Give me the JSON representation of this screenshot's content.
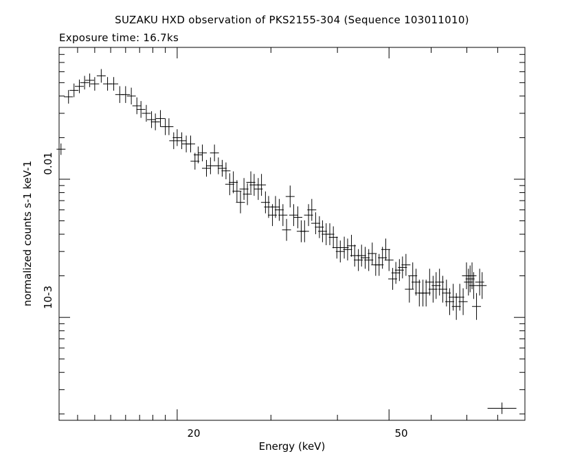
{
  "chart_data": {
    "type": "scatter",
    "title": "SUZAKU HXD observation of PKS2155-304 (Sequence 103011010)",
    "subtitle": "Exposure time: 16.7ks",
    "xlabel": "Energy (keV)",
    "ylabel": "normalized counts s-1 keV-1",
    "x_scale": "log",
    "y_scale": "log",
    "xlim": [
      12.0,
      90.0
    ],
    "ylim": [
      0.00018,
      0.09
    ],
    "x_tick_labels": [
      "20",
      "50"
    ],
    "y_tick_labels": [
      "0.01",
      "10-3"
    ],
    "error_bars": true,
    "grid": false,
    "points": [
      [
        12.1,
        0.0165,
        0.1
      ],
      [
        12.5,
        0.0395,
        0.12
      ],
      [
        12.8,
        0.044,
        0.12
      ],
      [
        13.1,
        0.047,
        0.12
      ],
      [
        13.4,
        0.05,
        0.12
      ],
      [
        13.7,
        0.052,
        0.12
      ],
      [
        14.0,
        0.049,
        0.12
      ],
      [
        14.4,
        0.056,
        0.12
      ],
      [
        14.8,
        0.049,
        0.12
      ],
      [
        15.2,
        0.049,
        0.12
      ],
      [
        15.6,
        0.041,
        0.15
      ],
      [
        16.0,
        0.041,
        0.15
      ],
      [
        16.4,
        0.04,
        0.15
      ],
      [
        16.8,
        0.034,
        0.15
      ],
      [
        17.1,
        0.032,
        0.15
      ],
      [
        17.5,
        0.03,
        0.15
      ],
      [
        17.9,
        0.027,
        0.15
      ],
      [
        18.2,
        0.026,
        0.15
      ],
      [
        18.6,
        0.0275,
        0.15
      ],
      [
        19.0,
        0.024,
        0.15
      ],
      [
        19.3,
        0.024,
        0.15
      ],
      [
        19.7,
        0.019,
        0.15
      ],
      [
        20.0,
        0.02,
        0.15
      ],
      [
        20.4,
        0.019,
        0.15
      ],
      [
        20.8,
        0.018,
        0.15
      ],
      [
        21.2,
        0.018,
        0.15
      ],
      [
        21.6,
        0.0135,
        0.15
      ],
      [
        21.9,
        0.015,
        0.15
      ],
      [
        22.3,
        0.0155,
        0.15
      ],
      [
        22.7,
        0.012,
        0.15
      ],
      [
        23.1,
        0.0125,
        0.15
      ],
      [
        23.5,
        0.0155,
        0.15
      ],
      [
        23.9,
        0.0125,
        0.15
      ],
      [
        24.3,
        0.012,
        0.15
      ],
      [
        24.7,
        0.0115,
        0.15
      ],
      [
        25.1,
        0.0092,
        0.2
      ],
      [
        25.5,
        0.0095,
        0.2
      ],
      [
        25.9,
        0.0082,
        0.2
      ],
      [
        26.3,
        0.0068,
        0.2
      ],
      [
        26.7,
        0.0085,
        0.2
      ],
      [
        27.1,
        0.0078,
        0.2
      ],
      [
        27.5,
        0.0095,
        0.2
      ],
      [
        27.9,
        0.0091,
        0.2
      ],
      [
        28.4,
        0.0085,
        0.2
      ],
      [
        28.8,
        0.0091,
        0.2
      ],
      [
        29.3,
        0.0068,
        0.2
      ],
      [
        29.7,
        0.0063,
        0.2
      ],
      [
        30.2,
        0.0055,
        0.2
      ],
      [
        30.6,
        0.0063,
        0.2
      ],
      [
        31.1,
        0.006,
        0.2
      ],
      [
        31.6,
        0.0055,
        0.2
      ],
      [
        32.1,
        0.0043,
        0.2
      ],
      [
        32.6,
        0.0075,
        0.2
      ],
      [
        33.1,
        0.0055,
        0.2
      ],
      [
        33.7,
        0.0053,
        0.2
      ],
      [
        34.2,
        0.0042,
        0.2
      ],
      [
        34.7,
        0.0042,
        0.2
      ],
      [
        35.3,
        0.0055,
        0.2
      ],
      [
        35.8,
        0.006,
        0.2
      ],
      [
        36.4,
        0.0048,
        0.2
      ],
      [
        37.0,
        0.0045,
        0.2
      ],
      [
        37.5,
        0.0042,
        0.2
      ],
      [
        38.1,
        0.004,
        0.2
      ],
      [
        38.7,
        0.004,
        0.2
      ],
      [
        39.3,
        0.0038,
        0.2
      ],
      [
        39.9,
        0.0032,
        0.2
      ],
      [
        40.5,
        0.003,
        0.2
      ],
      [
        41.2,
        0.0032,
        0.2
      ],
      [
        41.8,
        0.0031,
        0.2
      ],
      [
        42.5,
        0.0033,
        0.2
      ],
      [
        43.1,
        0.0028,
        0.2
      ],
      [
        43.8,
        0.0026,
        0.2
      ],
      [
        44.4,
        0.0028,
        0.2
      ],
      [
        45.1,
        0.0027,
        0.2
      ],
      [
        45.8,
        0.0026,
        0.2
      ],
      [
        46.5,
        0.0029,
        0.2
      ],
      [
        47.2,
        0.0024,
        0.2
      ],
      [
        47.9,
        0.0024,
        0.2
      ],
      [
        48.6,
        0.0027,
        0.2
      ],
      [
        49.3,
        0.0031,
        0.2
      ],
      [
        50.0,
        0.0026,
        0.2
      ],
      [
        50.8,
        0.0019,
        0.2
      ],
      [
        51.5,
        0.0021,
        0.2
      ],
      [
        52.3,
        0.0022,
        0.2
      ],
      [
        53.0,
        0.0023,
        0.2
      ],
      [
        53.8,
        0.0024,
        0.2
      ],
      [
        54.6,
        0.0016,
        0.25
      ],
      [
        55.4,
        0.002,
        0.25
      ],
      [
        56.2,
        0.0018,
        0.25
      ],
      [
        57.0,
        0.0015,
        0.25
      ],
      [
        57.9,
        0.0015,
        0.25
      ],
      [
        58.7,
        0.0015,
        0.25
      ],
      [
        59.6,
        0.0018,
        0.25
      ],
      [
        60.5,
        0.0016,
        0.25
      ],
      [
        61.3,
        0.0017,
        0.25
      ],
      [
        62.2,
        0.0018,
        0.25
      ],
      [
        63.1,
        0.0016,
        0.25
      ],
      [
        64.1,
        0.0015,
        0.25
      ],
      [
        65.0,
        0.0013,
        0.25
      ],
      [
        66.0,
        0.0014,
        0.25
      ],
      [
        66.9,
        0.0012,
        0.25
      ],
      [
        67.9,
        0.0014,
        0.25
      ],
      [
        68.9,
        0.0013,
        0.25
      ],
      [
        69.9,
        0.002,
        0.25
      ],
      [
        70.5,
        0.0018,
        0.25
      ],
      [
        71.0,
        0.0019,
        0.25
      ],
      [
        71.6,
        0.002,
        0.25
      ],
      [
        72.1,
        0.0017,
        0.25
      ],
      [
        73.0,
        0.0012,
        0.25
      ],
      [
        74.0,
        0.0018,
        0.25
      ],
      [
        74.8,
        0.0017,
        0.25
      ],
      [
        81.5,
        0.00022,
        0.1
      ]
    ]
  }
}
